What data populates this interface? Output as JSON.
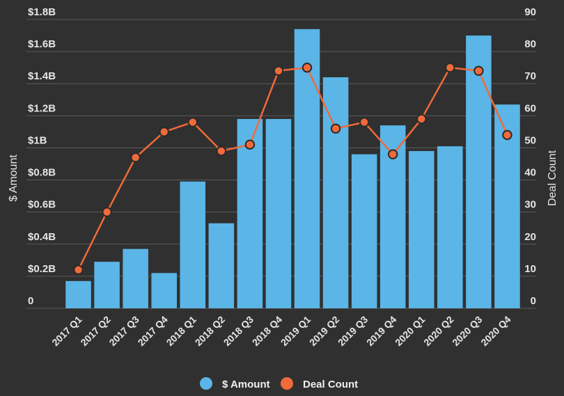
{
  "chart_data": {
    "type": "bar",
    "categories": [
      "2017 Q1",
      "2017 Q2",
      "2017 Q3",
      "2017 Q4",
      "2018 Q1",
      "2018 Q2",
      "2018 Q3",
      "2018 Q4",
      "2019 Q1",
      "2019 Q2",
      "2019 Q3",
      "2019 Q4",
      "2020 Q1",
      "2020 Q2",
      "2020 Q3",
      "2020 Q4"
    ],
    "series": [
      {
        "name": "$ Amount",
        "type": "bar",
        "axis": "left",
        "color": "#5bb5e6",
        "values": [
          0.17,
          0.29,
          0.37,
          0.22,
          0.79,
          0.53,
          1.18,
          1.18,
          1.74,
          1.44,
          0.96,
          1.14,
          0.98,
          1.01,
          1.7,
          1.27
        ]
      },
      {
        "name": "Deal Count",
        "type": "line",
        "axis": "right",
        "color": "#f06a3a",
        "values": [
          12,
          30,
          47,
          55,
          58,
          49,
          51,
          74,
          75,
          56,
          58,
          48,
          59,
          75,
          74,
          54
        ]
      }
    ],
    "y_left": {
      "label": "$ Amount",
      "min": 0,
      "max": 1.8,
      "ticks": [
        "0",
        "$0.2B",
        "$0.4B",
        "$0.6B",
        "$0.8B",
        "$1B",
        "$1.2B",
        "$1.4B",
        "$1.6B",
        "$1.8B"
      ]
    },
    "y_right": {
      "label": "Deal Count",
      "min": 0,
      "max": 90,
      "ticks": [
        "0",
        "10",
        "20",
        "30",
        "40",
        "50",
        "60",
        "70",
        "80",
        "90"
      ]
    },
    "grid": true,
    "legend_position": "bottom-center"
  }
}
